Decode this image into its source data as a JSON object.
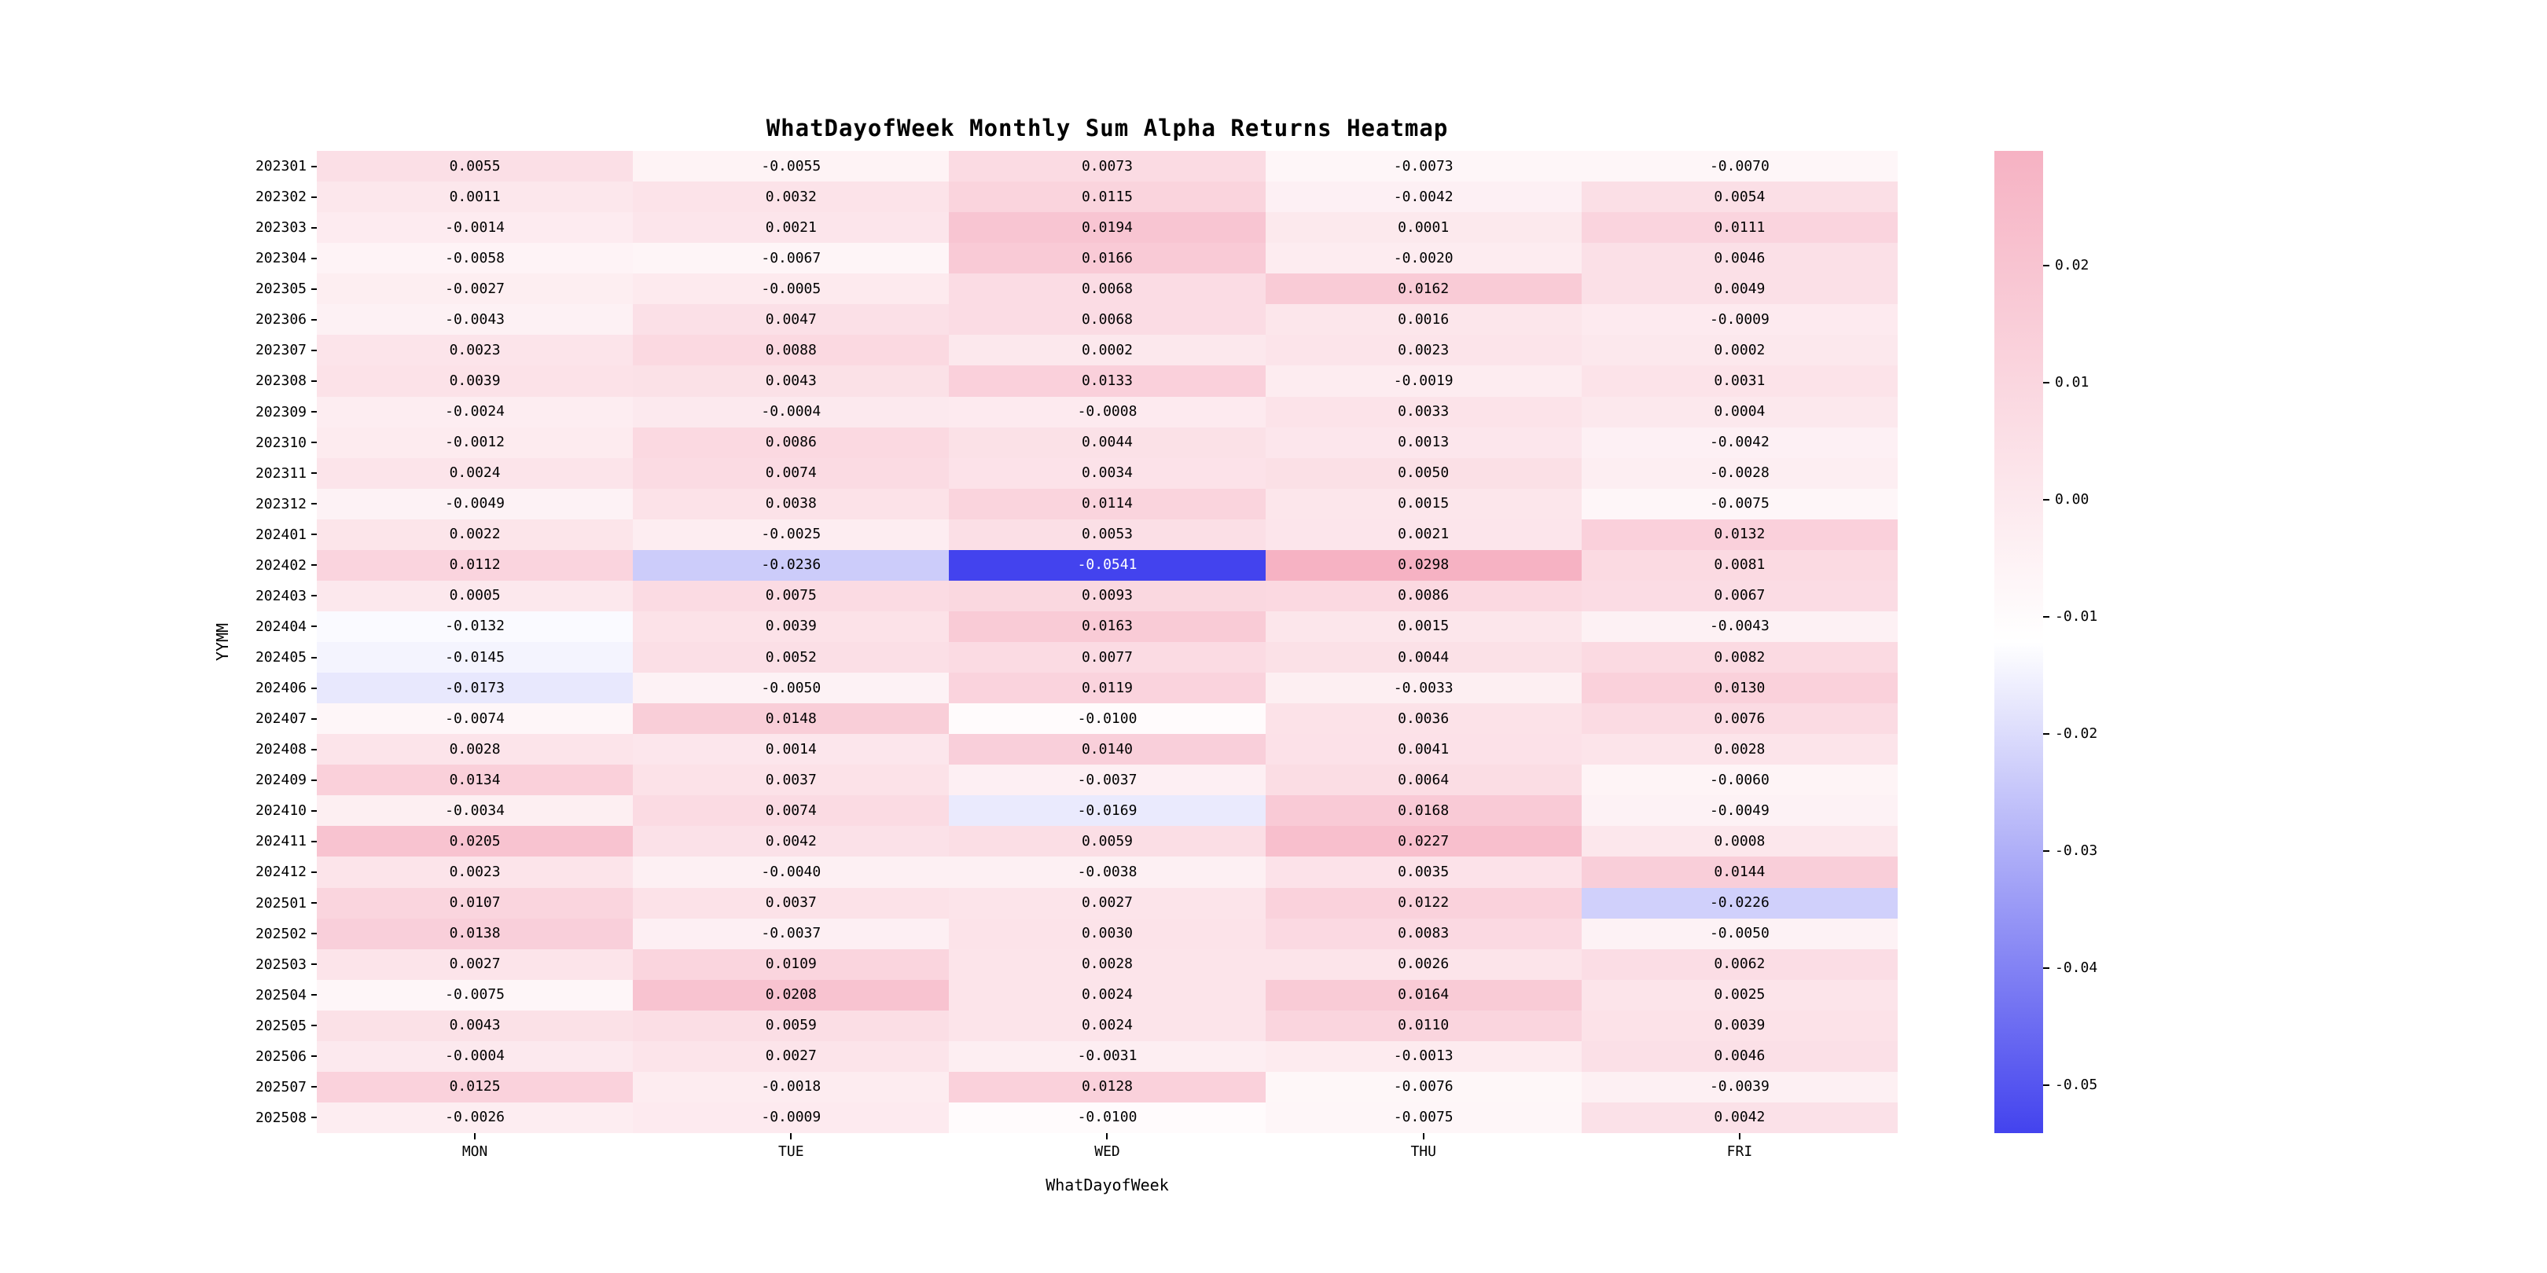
{
  "chart_data": {
    "type": "heatmap",
    "title": "WhatDayofWeek Monthly Sum Alpha Returns Heatmap",
    "xlabel": "WhatDayofWeek",
    "ylabel": "YYMM",
    "columns": [
      "MON",
      "TUE",
      "WED",
      "THU",
      "FRI"
    ],
    "rows": [
      "202301",
      "202302",
      "202303",
      "202304",
      "202305",
      "202306",
      "202307",
      "202308",
      "202309",
      "202310",
      "202311",
      "202312",
      "202401",
      "202402",
      "202403",
      "202404",
      "202405",
      "202406",
      "202407",
      "202408",
      "202409",
      "202410",
      "202411",
      "202412",
      "202501",
      "202502",
      "202503",
      "202504",
      "202505",
      "202506",
      "202507",
      "202508"
    ],
    "values": [
      [
        0.0055,
        -0.0055,
        0.0073,
        -0.0073,
        -0.007
      ],
      [
        0.0011,
        0.0032,
        0.0115,
        -0.0042,
        0.0054
      ],
      [
        -0.0014,
        0.0021,
        0.0194,
        0.0001,
        0.0111
      ],
      [
        -0.0058,
        -0.0067,
        0.0166,
        -0.002,
        0.0046
      ],
      [
        -0.0027,
        -0.0005,
        0.0068,
        0.0162,
        0.0049
      ],
      [
        -0.0043,
        0.0047,
        0.0068,
        0.0016,
        -0.0009
      ],
      [
        0.0023,
        0.0088,
        0.0002,
        0.0023,
        0.0002
      ],
      [
        0.0039,
        0.0043,
        0.0133,
        -0.0019,
        0.0031
      ],
      [
        -0.0024,
        -0.0004,
        -0.0008,
        0.0033,
        0.0004
      ],
      [
        -0.0012,
        0.0086,
        0.0044,
        0.0013,
        -0.0042
      ],
      [
        0.0024,
        0.0074,
        0.0034,
        0.005,
        -0.0028
      ],
      [
        -0.0049,
        0.0038,
        0.0114,
        0.0015,
        -0.0075
      ],
      [
        0.0022,
        -0.0025,
        0.0053,
        0.0021,
        0.0132
      ],
      [
        0.0112,
        -0.0236,
        -0.0541,
        0.0298,
        0.0081
      ],
      [
        0.0005,
        0.0075,
        0.0093,
        0.0086,
        0.0067
      ],
      [
        -0.0132,
        0.0039,
        0.0163,
        0.0015,
        -0.0043
      ],
      [
        -0.0145,
        0.0052,
        0.0077,
        0.0044,
        0.0082
      ],
      [
        -0.0173,
        -0.005,
        0.0119,
        -0.0033,
        0.013
      ],
      [
        -0.0074,
        0.0148,
        -0.01,
        0.0036,
        0.0076
      ],
      [
        0.0028,
        0.0014,
        0.014,
        0.0041,
        0.0028
      ],
      [
        0.0134,
        0.0037,
        -0.0037,
        0.0064,
        -0.006
      ],
      [
        -0.0034,
        0.0074,
        -0.0169,
        0.0168,
        -0.0049
      ],
      [
        0.0205,
        0.0042,
        0.0059,
        0.0227,
        0.0008
      ],
      [
        0.0023,
        -0.004,
        -0.0038,
        0.0035,
        0.0144
      ],
      [
        0.0107,
        0.0037,
        0.0027,
        0.0122,
        -0.0226
      ],
      [
        0.0138,
        -0.0037,
        0.003,
        0.0083,
        -0.005
      ],
      [
        0.0027,
        0.0109,
        0.0028,
        0.0026,
        0.0062
      ],
      [
        -0.0075,
        0.0208,
        0.0024,
        0.0164,
        0.0025
      ],
      [
        0.0043,
        0.0059,
        0.0024,
        0.011,
        0.0039
      ],
      [
        -0.0004,
        0.0027,
        -0.0031,
        -0.0013,
        0.0046
      ],
      [
        0.0125,
        -0.0018,
        0.0128,
        -0.0076,
        -0.0039
      ],
      [
        -0.0026,
        -0.0009,
        -0.01,
        -0.0075,
        0.0042
      ]
    ],
    "vmin": -0.0541,
    "vmax": 0.0298,
    "annot_decimals": 4,
    "colorbar_ticks": [
      0.02,
      0.01,
      0.0,
      -0.01,
      -0.02,
      -0.03,
      -0.04,
      -0.05
    ],
    "colorbar_tick_labels": [
      "0.02",
      "0.01",
      "0.00",
      "-0.01",
      "-0.02",
      "-0.03",
      "-0.04",
      "-0.05"
    ],
    "colors": {
      "low": "#4343ee",
      "mid": "#ffffff",
      "high": "#f6b2c3"
    },
    "legend_position": "colorbar-right",
    "grid": false
  }
}
